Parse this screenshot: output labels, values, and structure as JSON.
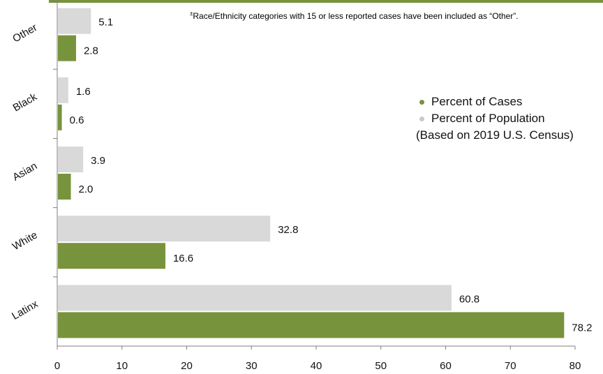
{
  "footnote": {
    "marker": "±",
    "text": "Race/Ethnicity categories with 15 or less reported cases have been included as “Other”."
  },
  "legend": {
    "cases_label": "Percent of Cases",
    "population_label": "Percent of Population",
    "population_note": "(Based on 2019 U.S. Census)"
  },
  "colors": {
    "cases": "#77933c",
    "population": "#d9d9d9",
    "header_bar": "#77933c",
    "axis": "#7f7f7f"
  },
  "chart_data": {
    "type": "bar",
    "orientation": "horizontal",
    "categories": [
      "Latinx",
      "White",
      "Asian",
      "Black",
      "Other"
    ],
    "series": [
      {
        "name": "Percent of Population",
        "values": [
          60.8,
          32.8,
          3.9,
          1.6,
          5.1
        ]
      },
      {
        "name": "Percent of Cases",
        "values": [
          78.2,
          16.6,
          2.0,
          0.6,
          2.8
        ]
      }
    ],
    "data_labels": {
      "Percent of Population": [
        "60.8",
        "32.8",
        "3.9",
        "1.6",
        "5.1"
      ],
      "Percent of Cases": [
        "78.2",
        "16.6",
        "2.0",
        "0.6",
        "2.8"
      ]
    },
    "x_ticks": [
      "0",
      "10",
      "20",
      "30",
      "40",
      "50",
      "60",
      "70",
      "80"
    ],
    "xlim": [
      0,
      80
    ],
    "grid": false,
    "legend_position": "right"
  }
}
